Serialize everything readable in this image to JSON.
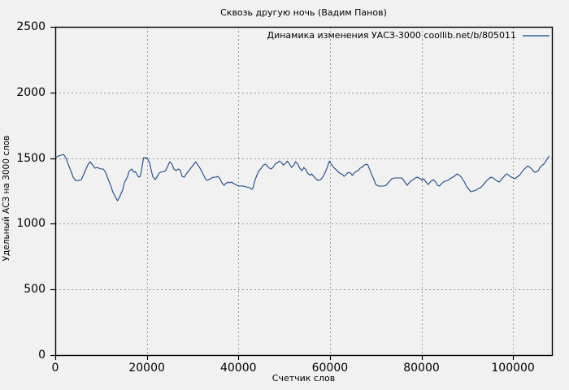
{
  "chart_data": {
    "type": "line",
    "title": "Сквозь другую ночь (Вадим Панов)",
    "xlabel": "Счетчик слов",
    "ylabel": "Удельный АСЗ на 3000 слов",
    "xlim": [
      0,
      108500
    ],
    "ylim": [
      0,
      2500
    ],
    "x_ticks": [
      0,
      20000,
      40000,
      60000,
      80000,
      100000
    ],
    "y_ticks": [
      0,
      500,
      1000,
      1500,
      2000,
      2500
    ],
    "grid": true,
    "legend_position": "top-right-inside",
    "line_color": "#1b4889",
    "background_color": "#f1f1f1",
    "series": [
      {
        "name": "Динамика изменения УАСЗ-3000 coollib.net/b/805011",
        "points": [
          [
            0,
            1503
          ],
          [
            700,
            1516
          ],
          [
            1800,
            1528
          ],
          [
            2300,
            1503
          ],
          [
            2800,
            1454
          ],
          [
            3400,
            1404
          ],
          [
            3900,
            1355
          ],
          [
            4400,
            1330
          ],
          [
            5100,
            1330
          ],
          [
            5700,
            1336
          ],
          [
            6400,
            1392
          ],
          [
            7100,
            1448
          ],
          [
            7600,
            1472
          ],
          [
            8000,
            1454
          ],
          [
            8700,
            1423
          ],
          [
            9200,
            1429
          ],
          [
            9900,
            1417
          ],
          [
            10500,
            1417
          ],
          [
            11000,
            1392
          ],
          [
            11500,
            1343
          ],
          [
            12100,
            1293
          ],
          [
            12600,
            1238
          ],
          [
            13300,
            1194
          ],
          [
            13600,
            1176
          ],
          [
            14000,
            1200
          ],
          [
            14700,
            1256
          ],
          [
            15100,
            1312
          ],
          [
            15800,
            1361
          ],
          [
            16100,
            1398
          ],
          [
            16700,
            1417
          ],
          [
            17200,
            1392
          ],
          [
            17500,
            1398
          ],
          [
            18200,
            1355
          ],
          [
            18600,
            1361
          ],
          [
            19300,
            1503
          ],
          [
            19800,
            1503
          ],
          [
            20200,
            1491
          ],
          [
            20600,
            1466
          ],
          [
            20900,
            1417
          ],
          [
            21300,
            1361
          ],
          [
            21800,
            1336
          ],
          [
            22200,
            1355
          ],
          [
            22700,
            1386
          ],
          [
            23000,
            1392
          ],
          [
            23700,
            1398
          ],
          [
            24100,
            1404
          ],
          [
            24600,
            1441
          ],
          [
            25000,
            1472
          ],
          [
            25500,
            1454
          ],
          [
            25900,
            1417
          ],
          [
            26400,
            1404
          ],
          [
            26800,
            1417
          ],
          [
            27300,
            1410
          ],
          [
            27700,
            1361
          ],
          [
            28200,
            1355
          ],
          [
            28600,
            1380
          ],
          [
            29200,
            1404
          ],
          [
            29600,
            1423
          ],
          [
            30700,
            1472
          ],
          [
            31000,
            1454
          ],
          [
            31600,
            1423
          ],
          [
            32100,
            1392
          ],
          [
            32800,
            1343
          ],
          [
            33200,
            1330
          ],
          [
            33500,
            1336
          ],
          [
            34200,
            1349
          ],
          [
            34600,
            1355
          ],
          [
            35200,
            1355
          ],
          [
            35500,
            1361
          ],
          [
            36000,
            1343
          ],
          [
            36400,
            1312
          ],
          [
            36900,
            1293
          ],
          [
            37200,
            1306
          ],
          [
            37800,
            1318
          ],
          [
            38100,
            1312
          ],
          [
            38500,
            1318
          ],
          [
            39000,
            1306
          ],
          [
            39700,
            1293
          ],
          [
            40200,
            1287
          ],
          [
            41100,
            1287
          ],
          [
            41700,
            1281
          ],
          [
            42500,
            1275
          ],
          [
            42900,
            1262
          ],
          [
            43200,
            1275
          ],
          [
            43600,
            1330
          ],
          [
            44100,
            1374
          ],
          [
            44500,
            1404
          ],
          [
            45000,
            1423
          ],
          [
            45400,
            1447
          ],
          [
            45900,
            1454
          ],
          [
            46300,
            1441
          ],
          [
            46800,
            1423
          ],
          [
            47200,
            1417
          ],
          [
            47700,
            1435
          ],
          [
            48000,
            1454
          ],
          [
            48600,
            1466
          ],
          [
            48900,
            1478
          ],
          [
            49400,
            1466
          ],
          [
            49800,
            1447
          ],
          [
            50300,
            1460
          ],
          [
            50700,
            1478
          ],
          [
            51200,
            1454
          ],
          [
            51600,
            1429
          ],
          [
            52100,
            1447
          ],
          [
            52500,
            1472
          ],
          [
            53000,
            1454
          ],
          [
            53400,
            1423
          ],
          [
            53900,
            1404
          ],
          [
            54300,
            1429
          ],
          [
            54800,
            1410
          ],
          [
            55100,
            1386
          ],
          [
            55700,
            1368
          ],
          [
            56000,
            1380
          ],
          [
            56600,
            1355
          ],
          [
            56900,
            1343
          ],
          [
            57400,
            1330
          ],
          [
            58000,
            1336
          ],
          [
            58500,
            1361
          ],
          [
            58900,
            1386
          ],
          [
            59400,
            1429
          ],
          [
            59900,
            1478
          ],
          [
            60300,
            1454
          ],
          [
            60800,
            1429
          ],
          [
            61200,
            1417
          ],
          [
            61700,
            1398
          ],
          [
            62100,
            1386
          ],
          [
            62800,
            1374
          ],
          [
            63100,
            1361
          ],
          [
            63700,
            1380
          ],
          [
            64000,
            1392
          ],
          [
            64500,
            1386
          ],
          [
            64900,
            1368
          ],
          [
            65400,
            1392
          ],
          [
            65800,
            1398
          ],
          [
            66300,
            1410
          ],
          [
            66600,
            1423
          ],
          [
            67200,
            1435
          ],
          [
            67500,
            1447
          ],
          [
            68100,
            1454
          ],
          [
            68300,
            1447
          ],
          [
            68800,
            1404
          ],
          [
            69200,
            1368
          ],
          [
            69700,
            1330
          ],
          [
            70000,
            1299
          ],
          [
            70600,
            1287
          ],
          [
            71300,
            1287
          ],
          [
            71800,
            1287
          ],
          [
            72300,
            1293
          ],
          [
            72700,
            1312
          ],
          [
            73200,
            1330
          ],
          [
            73500,
            1343
          ],
          [
            74200,
            1349
          ],
          [
            75700,
            1349
          ],
          [
            76000,
            1336
          ],
          [
            76600,
            1306
          ],
          [
            76900,
            1293
          ],
          [
            77300,
            1312
          ],
          [
            77800,
            1330
          ],
          [
            78200,
            1336
          ],
          [
            78700,
            1349
          ],
          [
            79100,
            1355
          ],
          [
            79800,
            1343
          ],
          [
            80100,
            1330
          ],
          [
            80500,
            1343
          ],
          [
            81000,
            1318
          ],
          [
            81500,
            1299
          ],
          [
            81900,
            1318
          ],
          [
            82300,
            1330
          ],
          [
            82600,
            1336
          ],
          [
            83100,
            1318
          ],
          [
            83500,
            1293
          ],
          [
            83900,
            1287
          ],
          [
            84200,
            1299
          ],
          [
            84800,
            1318
          ],
          [
            85100,
            1324
          ],
          [
            85700,
            1330
          ],
          [
            86000,
            1336
          ],
          [
            86500,
            1349
          ],
          [
            86900,
            1355
          ],
          [
            87400,
            1368
          ],
          [
            87800,
            1380
          ],
          [
            88300,
            1368
          ],
          [
            88700,
            1355
          ],
          [
            89000,
            1336
          ],
          [
            89400,
            1318
          ],
          [
            89900,
            1281
          ],
          [
            90500,
            1256
          ],
          [
            90800,
            1244
          ],
          [
            91400,
            1250
          ],
          [
            92000,
            1256
          ],
          [
            92400,
            1268
          ],
          [
            92900,
            1275
          ],
          [
            93400,
            1293
          ],
          [
            94000,
            1318
          ],
          [
            94300,
            1330
          ],
          [
            94700,
            1343
          ],
          [
            95200,
            1355
          ],
          [
            95700,
            1349
          ],
          [
            96100,
            1336
          ],
          [
            96600,
            1324
          ],
          [
            97000,
            1318
          ],
          [
            97300,
            1330
          ],
          [
            97900,
            1355
          ],
          [
            98400,
            1374
          ],
          [
            98700,
            1380
          ],
          [
            99100,
            1368
          ],
          [
            99600,
            1355
          ],
          [
            100100,
            1349
          ],
          [
            100500,
            1343
          ],
          [
            100800,
            1355
          ],
          [
            101400,
            1368
          ],
          [
            101900,
            1392
          ],
          [
            102300,
            1410
          ],
          [
            102700,
            1423
          ],
          [
            103200,
            1441
          ],
          [
            103700,
            1429
          ],
          [
            104100,
            1417
          ],
          [
            104500,
            1398
          ],
          [
            104900,
            1392
          ],
          [
            105500,
            1404
          ],
          [
            105800,
            1423
          ],
          [
            106200,
            1441
          ],
          [
            106700,
            1454
          ],
          [
            107200,
            1478
          ],
          [
            107500,
            1497
          ],
          [
            107900,
            1516
          ]
        ]
      }
    ]
  }
}
